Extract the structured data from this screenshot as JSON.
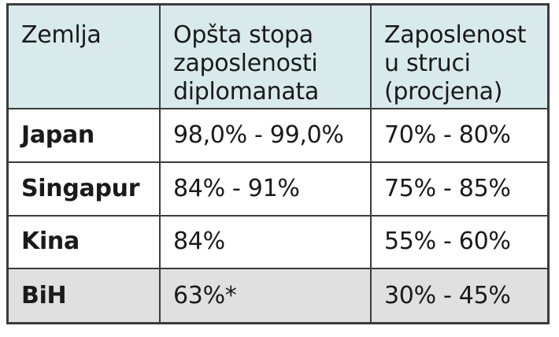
{
  "table": {
    "headers": [
      "Zemlja",
      "Opšta stopa\nzaposlenosti\ndiplomanata",
      "Zaposlenost\nu struci\n(procjena)"
    ],
    "rows": [
      {
        "country": "Japan",
        "overall": "98,0% - 99,0%",
        "in_field": "70% - 80%"
      },
      {
        "country": "Singapur",
        "overall": "84% - 91%",
        "in_field": "75% - 85%"
      },
      {
        "country": "Kina",
        "overall": "84%",
        "in_field": "55% - 60%"
      },
      {
        "country": "BiH",
        "overall": "63%*",
        "in_field": "30% - 45%"
      }
    ],
    "colors": {
      "header_bg": "#d8eaec",
      "highlight_row_bg": "#e0e0e0",
      "border": "#3c3c3c"
    }
  }
}
